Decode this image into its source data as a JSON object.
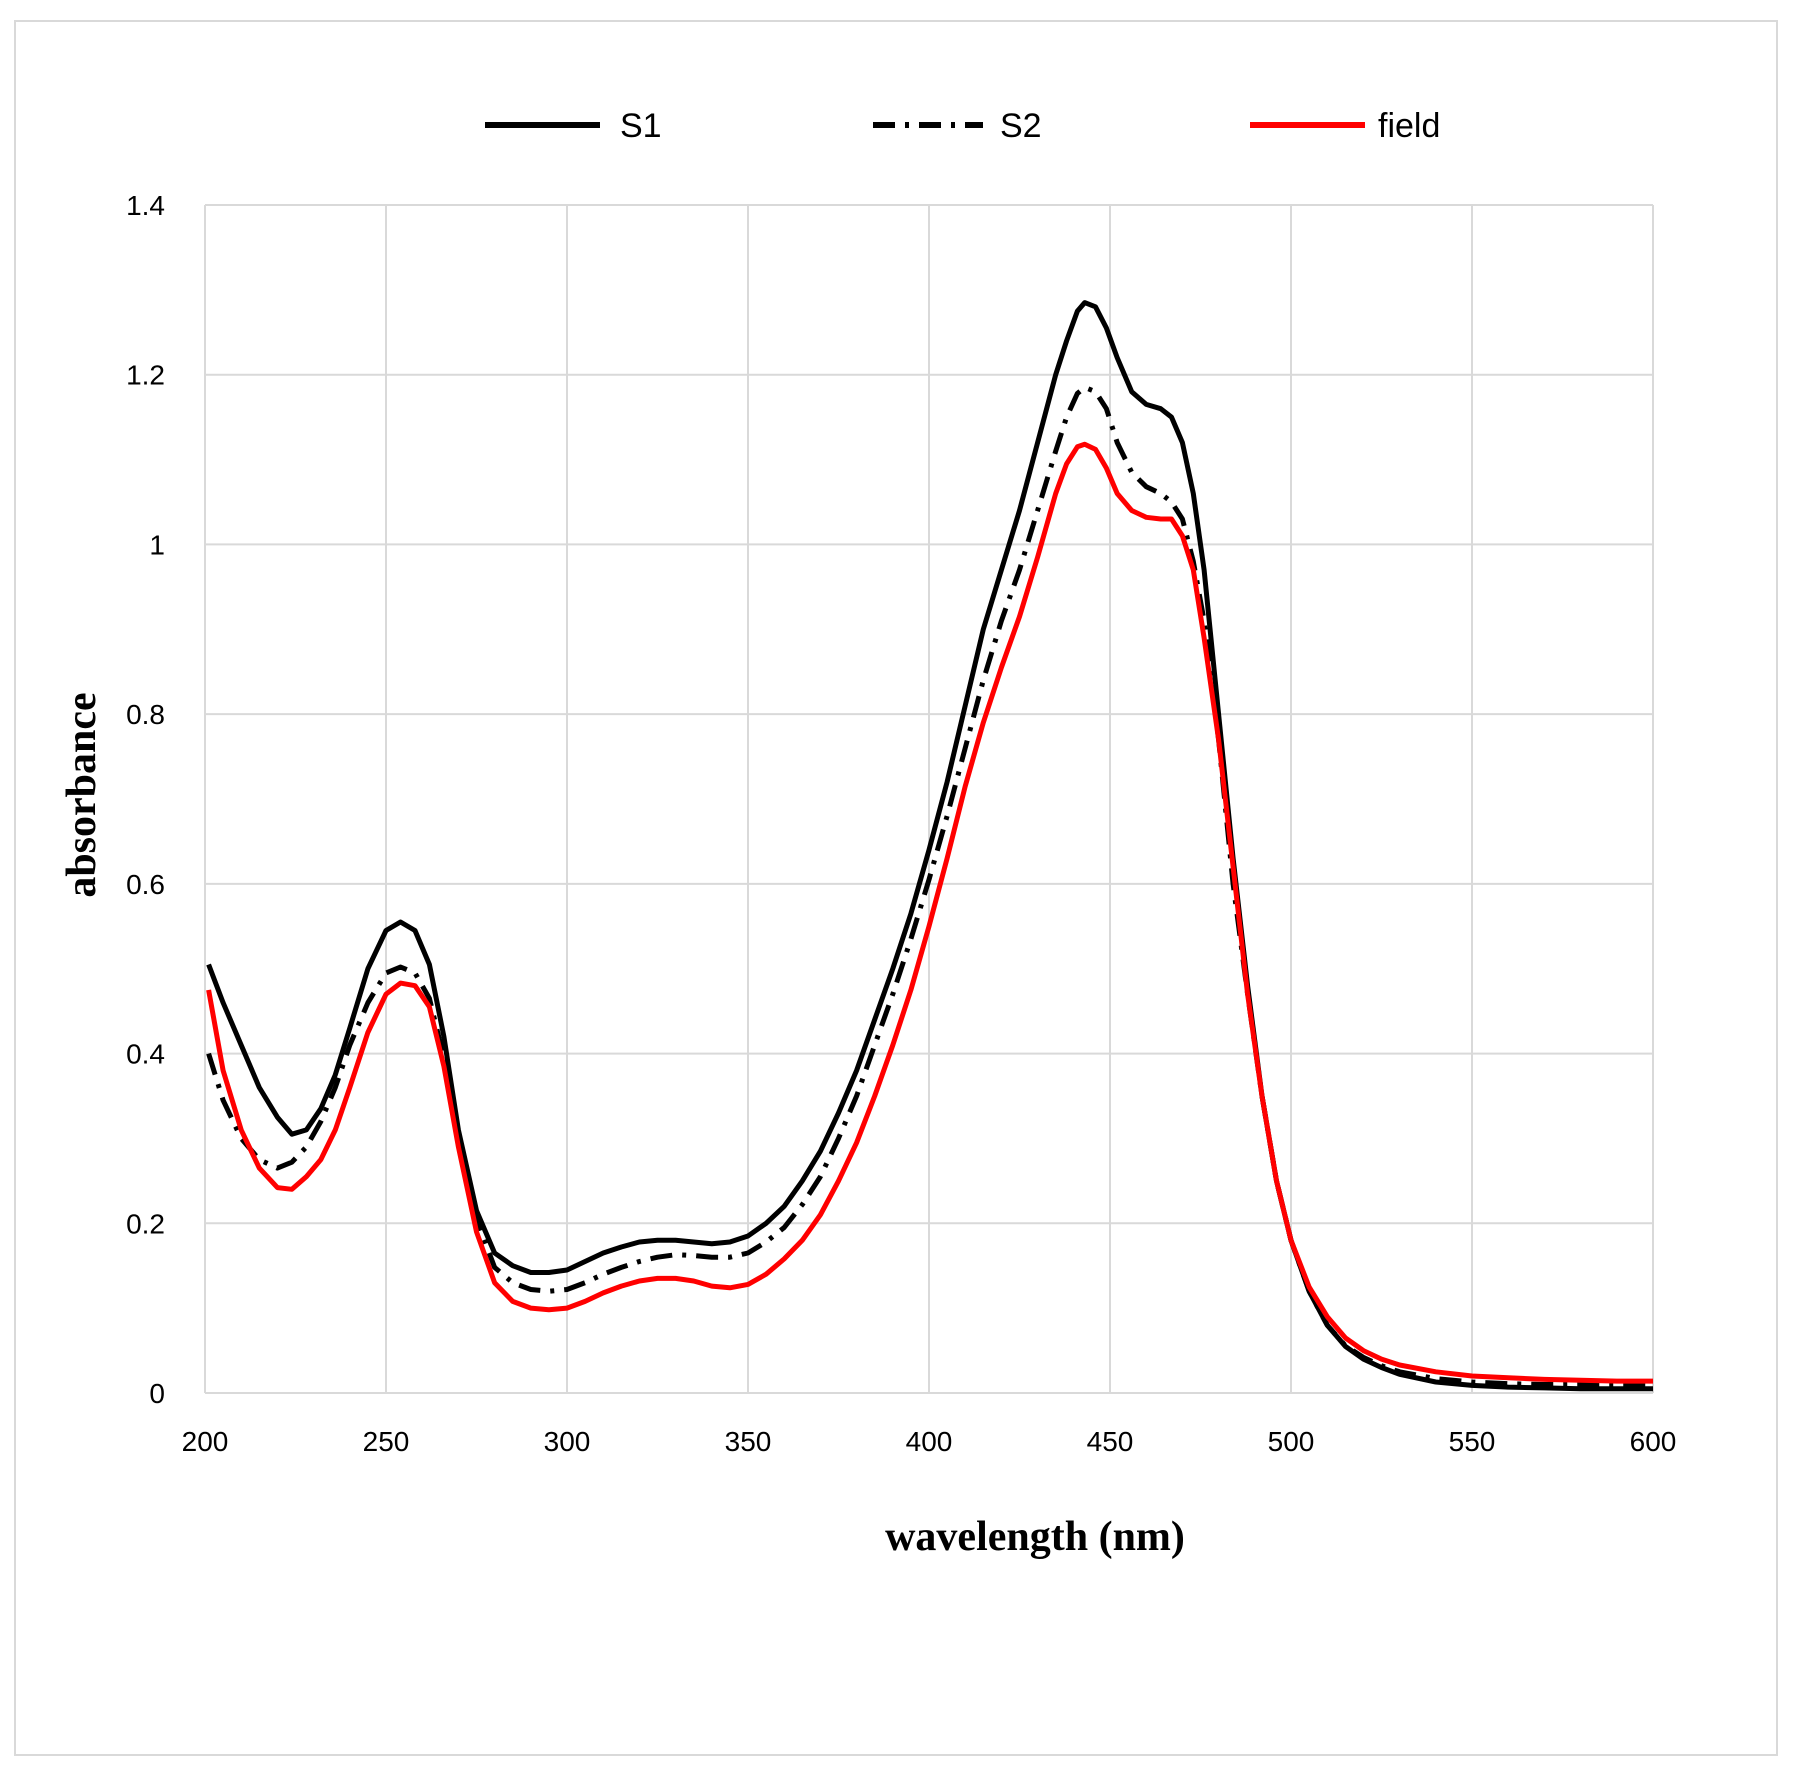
{
  "chart_data": {
    "type": "line",
    "title": "",
    "xlabel": "wavelength (nm)",
    "ylabel": "absorbance",
    "xlim": [
      200,
      600
    ],
    "ylim": [
      0,
      1.4
    ],
    "grid": true,
    "legend_position": "top",
    "x_ticks": [
      200,
      250,
      300,
      350,
      400,
      450,
      500,
      550,
      600
    ],
    "x_tick_labels": [
      "200",
      "250",
      "300",
      "350",
      "400",
      "450",
      "500",
      "550",
      "600"
    ],
    "y_ticks": [
      0,
      0.2,
      0.4,
      0.6,
      0.8,
      1,
      1.2,
      1.4
    ],
    "y_tick_labels": [
      "0",
      "0.2",
      "0.4",
      "0.6",
      "0.8",
      "1",
      "1.2",
      "1.4"
    ],
    "series": [
      {
        "name": "S1",
        "color": "#000000",
        "style": "solid",
        "x": [
          201,
          205,
          210,
          215,
          220,
          224,
          228,
          232,
          236,
          240,
          245,
          250,
          254,
          258,
          262,
          266,
          270,
          275,
          280,
          285,
          290,
          295,
          300,
          305,
          310,
          315,
          320,
          325,
          330,
          335,
          340,
          345,
          350,
          355,
          360,
          365,
          370,
          375,
          380,
          385,
          390,
          395,
          400,
          405,
          410,
          415,
          420,
          425,
          430,
          435,
          438,
          441,
          443,
          446,
          449,
          452,
          456,
          460,
          464,
          467,
          470,
          473,
          476,
          480,
          484,
          488,
          492,
          496,
          500,
          505,
          510,
          515,
          520,
          525,
          530,
          540,
          550,
          560,
          570,
          580,
          590,
          600
        ],
        "y": [
          0.505,
          0.46,
          0.41,
          0.36,
          0.325,
          0.305,
          0.31,
          0.335,
          0.375,
          0.43,
          0.5,
          0.545,
          0.555,
          0.545,
          0.505,
          0.42,
          0.31,
          0.215,
          0.165,
          0.15,
          0.142,
          0.142,
          0.145,
          0.155,
          0.165,
          0.172,
          0.178,
          0.18,
          0.18,
          0.178,
          0.176,
          0.178,
          0.185,
          0.2,
          0.22,
          0.25,
          0.285,
          0.33,
          0.38,
          0.44,
          0.5,
          0.565,
          0.64,
          0.72,
          0.81,
          0.9,
          0.97,
          1.04,
          1.12,
          1.2,
          1.24,
          1.275,
          1.285,
          1.28,
          1.255,
          1.22,
          1.18,
          1.165,
          1.16,
          1.15,
          1.12,
          1.06,
          0.97,
          0.8,
          0.63,
          0.48,
          0.35,
          0.25,
          0.18,
          0.12,
          0.08,
          0.055,
          0.04,
          0.03,
          0.022,
          0.013,
          0.009,
          0.007,
          0.006,
          0.005,
          0.005,
          0.005
        ]
      },
      {
        "name": "S2",
        "color": "#000000",
        "style": "dashdot",
        "x": [
          201,
          205,
          210,
          215,
          220,
          224,
          228,
          232,
          236,
          240,
          245,
          250,
          254,
          258,
          262,
          266,
          270,
          275,
          280,
          285,
          290,
          295,
          300,
          305,
          310,
          315,
          320,
          325,
          330,
          335,
          340,
          345,
          350,
          355,
          360,
          365,
          370,
          375,
          380,
          385,
          390,
          395,
          400,
          405,
          410,
          415,
          420,
          425,
          430,
          435,
          438,
          441,
          443,
          446,
          449,
          452,
          456,
          460,
          464,
          467,
          470,
          473,
          476,
          480,
          484,
          488,
          492,
          496,
          500,
          505,
          510,
          515,
          520,
          525,
          530,
          540,
          550,
          560,
          570,
          580,
          590,
          600
        ],
        "y": [
          0.4,
          0.345,
          0.3,
          0.275,
          0.265,
          0.272,
          0.29,
          0.32,
          0.36,
          0.41,
          0.46,
          0.495,
          0.502,
          0.495,
          0.465,
          0.395,
          0.3,
          0.205,
          0.148,
          0.13,
          0.122,
          0.12,
          0.122,
          0.13,
          0.14,
          0.148,
          0.155,
          0.16,
          0.163,
          0.162,
          0.16,
          0.16,
          0.165,
          0.178,
          0.195,
          0.222,
          0.255,
          0.3,
          0.35,
          0.41,
          0.47,
          0.535,
          0.605,
          0.68,
          0.76,
          0.84,
          0.91,
          0.97,
          1.04,
          1.11,
          1.15,
          1.178,
          1.185,
          1.18,
          1.16,
          1.12,
          1.085,
          1.068,
          1.06,
          1.05,
          1.03,
          0.98,
          0.91,
          0.77,
          0.6,
          0.47,
          0.35,
          0.25,
          0.18,
          0.12,
          0.08,
          0.056,
          0.042,
          0.032,
          0.025,
          0.017,
          0.013,
          0.011,
          0.01,
          0.01,
          0.01,
          0.01
        ]
      },
      {
        "name": "field",
        "color": "#ff0000",
        "style": "solid",
        "x": [
          201,
          205,
          210,
          215,
          220,
          224,
          228,
          232,
          236,
          240,
          245,
          250,
          254,
          258,
          262,
          266,
          270,
          275,
          280,
          285,
          290,
          295,
          300,
          305,
          310,
          315,
          320,
          325,
          330,
          335,
          340,
          345,
          350,
          355,
          360,
          365,
          370,
          375,
          380,
          385,
          390,
          395,
          400,
          405,
          410,
          415,
          420,
          425,
          430,
          435,
          438,
          441,
          443,
          446,
          449,
          452,
          456,
          460,
          464,
          467,
          470,
          473,
          476,
          480,
          484,
          488,
          492,
          496,
          500,
          505,
          510,
          515,
          520,
          525,
          530,
          540,
          550,
          560,
          570,
          580,
          590,
          600
        ],
        "y": [
          0.475,
          0.38,
          0.31,
          0.265,
          0.242,
          0.24,
          0.255,
          0.275,
          0.31,
          0.36,
          0.425,
          0.47,
          0.483,
          0.48,
          0.455,
          0.385,
          0.29,
          0.19,
          0.13,
          0.108,
          0.1,
          0.098,
          0.1,
          0.108,
          0.118,
          0.126,
          0.132,
          0.135,
          0.135,
          0.132,
          0.126,
          0.124,
          0.128,
          0.14,
          0.158,
          0.18,
          0.21,
          0.25,
          0.295,
          0.35,
          0.41,
          0.475,
          0.55,
          0.63,
          0.715,
          0.79,
          0.855,
          0.915,
          0.985,
          1.06,
          1.095,
          1.115,
          1.118,
          1.112,
          1.09,
          1.06,
          1.04,
          1.032,
          1.03,
          1.03,
          1.01,
          0.97,
          0.89,
          0.77,
          0.62,
          0.47,
          0.35,
          0.25,
          0.18,
          0.125,
          0.09,
          0.065,
          0.05,
          0.04,
          0.033,
          0.025,
          0.02,
          0.018,
          0.016,
          0.015,
          0.014,
          0.014
        ]
      }
    ]
  }
}
